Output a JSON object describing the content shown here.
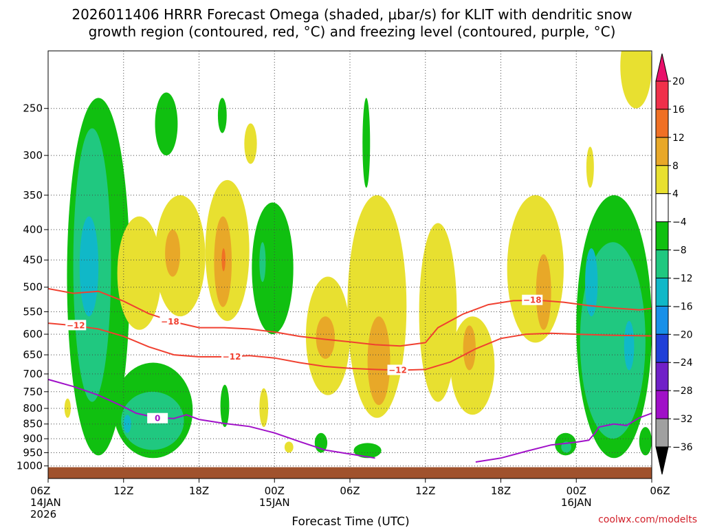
{
  "chart_data": {
    "type": "heatmap",
    "title": {
      "line1": "2026011406 HRRR Forecast Omega (shaded, μbar/s) for KLIT with dendritic snow",
      "line2": "growth region (contoured, red, °C) and freezing level (contoured, purple, °C)"
    },
    "xlabel": "Forecast Time (UTC)",
    "credit": "coolwx.com/modelts",
    "x_range_hours": [
      0,
      48
    ],
    "y_range_hpa": [
      1050,
      200
    ],
    "x_ticks": [
      {
        "hour": 0,
        "label": "06Z",
        "date": "14JAN",
        "year": "2026"
      },
      {
        "hour": 6,
        "label": "12Z"
      },
      {
        "hour": 12,
        "label": "18Z"
      },
      {
        "hour": 18,
        "label": "00Z",
        "date": "15JAN"
      },
      {
        "hour": 24,
        "label": "06Z"
      },
      {
        "hour": 30,
        "label": "12Z"
      },
      {
        "hour": 36,
        "label": "18Z"
      },
      {
        "hour": 42,
        "label": "00Z",
        "date": "16JAN"
      },
      {
        "hour": 48,
        "label": "06Z"
      }
    ],
    "y_ticks": [
      250,
      300,
      350,
      400,
      450,
      500,
      550,
      600,
      650,
      700,
      750,
      800,
      850,
      900,
      950,
      1000
    ],
    "colorbar": {
      "labels": [
        "20",
        "16",
        "12",
        "8",
        "4",
        "−4",
        "−8",
        "−12",
        "−16",
        "−20",
        "−24",
        "−28",
        "−32",
        "−36"
      ],
      "bins": [
        {
          "lo": 16,
          "hi": 20,
          "color": "#f0304a"
        },
        {
          "lo": 12,
          "hi": 16,
          "color": "#f07024"
        },
        {
          "lo": 8,
          "hi": 12,
          "color": "#e8a828"
        },
        {
          "lo": 4,
          "hi": 8,
          "color": "#e8e030"
        },
        {
          "lo": -4,
          "hi": 4,
          "color": "#ffffff"
        },
        {
          "lo": -8,
          "hi": -4,
          "color": "#10c010"
        },
        {
          "lo": -12,
          "hi": -8,
          "color": "#20c880"
        },
        {
          "lo": -16,
          "hi": -12,
          "color": "#10b8c8"
        },
        {
          "lo": -20,
          "hi": -16,
          "color": "#1890e8"
        },
        {
          "lo": -24,
          "hi": -20,
          "color": "#2040d8"
        },
        {
          "lo": -28,
          "hi": -24,
          "color": "#7020c8"
        },
        {
          "lo": -32,
          "hi": -28,
          "color": "#a010c8"
        },
        {
          "lo": -36,
          "hi": -32,
          "color": "#a0a0a0"
        }
      ],
      "top_arrow_color": "#e8106a",
      "bottom_arrow_color": "#000000"
    },
    "omega_regions": [
      {
        "value": -6,
        "x": [
          1.5,
          6.5
        ],
        "y": [
          240,
          960
        ]
      },
      {
        "value": -10,
        "x": [
          2.0,
          5.0
        ],
        "y": [
          270,
          780
        ]
      },
      {
        "value": -14,
        "x": [
          2.5,
          4.0
        ],
        "y": [
          380,
          560
        ]
      },
      {
        "value": -6,
        "x": [
          8.5,
          10.3
        ],
        "y": [
          235,
          300
        ]
      },
      {
        "value": -6,
        "x": [
          13.5,
          14.2
        ],
        "y": [
          240,
          275
        ]
      },
      {
        "value": -6,
        "x": [
          16.2,
          19.5
        ],
        "y": [
          360,
          600
        ]
      },
      {
        "value": -10,
        "x": [
          16.8,
          17.3
        ],
        "y": [
          420,
          490
        ]
      },
      {
        "value": -6,
        "x": [
          5.2,
          11.5
        ],
        "y": [
          670,
          970
        ]
      },
      {
        "value": -10,
        "x": [
          5.8,
          10.8
        ],
        "y": [
          750,
          940
        ]
      },
      {
        "value": -14,
        "x": [
          6.0,
          6.6
        ],
        "y": [
          820,
          880
        ]
      },
      {
        "value": -6,
        "x": [
          13.7,
          14.4
        ],
        "y": [
          730,
          860
        ]
      },
      {
        "value": -6,
        "x": [
          21.2,
          22.2
        ],
        "y": [
          880,
          950
        ]
      },
      {
        "value": -6,
        "x": [
          24.3,
          26.5
        ],
        "y": [
          915,
          970
        ]
      },
      {
        "value": -6,
        "x": [
          25.0,
          25.6
        ],
        "y": [
          240,
          340
        ]
      },
      {
        "value": -6,
        "x": [
          40.3,
          42.0
        ],
        "y": [
          880,
          960
        ]
      },
      {
        "value": -10,
        "x": [
          40.8,
          41.6
        ],
        "y": [
          910,
          950
        ]
      },
      {
        "value": -6,
        "x": [
          42.0,
          48.0
        ],
        "y": [
          350,
          970
        ]
      },
      {
        "value": -10,
        "x": [
          42.3,
          47.5
        ],
        "y": [
          420,
          900
        ]
      },
      {
        "value": -14,
        "x": [
          42.7,
          43.7
        ],
        "y": [
          430,
          560
        ]
      },
      {
        "value": -14,
        "x": [
          45.8,
          46.6
        ],
        "y": [
          570,
          690
        ]
      },
      {
        "value": -6,
        "x": [
          47.0,
          48.0
        ],
        "y": [
          860,
          960
        ]
      },
      {
        "value": 6,
        "x": [
          5.5,
          9.0
        ],
        "y": [
          380,
          590
        ]
      },
      {
        "value": 6,
        "x": [
          8.5,
          12.5
        ],
        "y": [
          350,
          560
        ]
      },
      {
        "value": 10,
        "x": [
          9.3,
          10.5
        ],
        "y": [
          400,
          480
        ]
      },
      {
        "value": 6,
        "x": [
          12.5,
          16.0
        ],
        "y": [
          330,
          570
        ]
      },
      {
        "value": 10,
        "x": [
          13.2,
          14.6
        ],
        "y": [
          380,
          540
        ]
      },
      {
        "value": 14,
        "x": [
          13.8,
          14.1
        ],
        "y": [
          430,
          470
        ]
      },
      {
        "value": 6,
        "x": [
          15.6,
          16.6
        ],
        "y": [
          265,
          310
        ]
      },
      {
        "value": 6,
        "x": [
          20.5,
          24.0
        ],
        "y": [
          480,
          760
        ]
      },
      {
        "value": 10,
        "x": [
          21.3,
          22.8
        ],
        "y": [
          560,
          660
        ]
      },
      {
        "value": 6,
        "x": [
          23.8,
          28.5
        ],
        "y": [
          350,
          830
        ]
      },
      {
        "value": 10,
        "x": [
          25.4,
          27.2
        ],
        "y": [
          560,
          790
        ]
      },
      {
        "value": 6,
        "x": [
          29.5,
          32.5
        ],
        "y": [
          390,
          780
        ]
      },
      {
        "value": 6,
        "x": [
          32.0,
          35.5
        ],
        "y": [
          560,
          820
        ]
      },
      {
        "value": 10,
        "x": [
          33.0,
          34.0
        ],
        "y": [
          580,
          690
        ]
      },
      {
        "value": 6,
        "x": [
          36.5,
          41.0
        ],
        "y": [
          350,
          620
        ]
      },
      {
        "value": 10,
        "x": [
          38.8,
          40.0
        ],
        "y": [
          440,
          590
        ]
      },
      {
        "value": 6,
        "x": [
          45.5,
          48.0
        ],
        "y": [
          180,
          250
        ]
      },
      {
        "value": 6,
        "x": [
          42.8,
          43.4
        ],
        "y": [
          290,
          340
        ]
      },
      {
        "value": 6,
        "x": [
          16.8,
          17.5
        ],
        "y": [
          740,
          860
        ]
      },
      {
        "value": 6,
        "x": [
          1.3,
          1.8
        ],
        "y": [
          770,
          830
        ]
      },
      {
        "value": 6,
        "x": [
          18.8,
          19.5
        ],
        "y": [
          910,
          950
        ]
      }
    ],
    "dgz_contours": [
      {
        "label": "−12",
        "color": "#f04030",
        "points": [
          [
            0,
            575
          ],
          [
            2,
            580
          ],
          [
            4,
            588
          ],
          [
            6,
            605
          ],
          [
            8,
            630
          ],
          [
            10,
            650
          ],
          [
            12,
            655
          ],
          [
            14,
            655
          ],
          [
            16,
            652
          ],
          [
            18,
            658
          ],
          [
            20,
            670
          ],
          [
            22,
            680
          ],
          [
            24,
            685
          ],
          [
            26,
            688
          ],
          [
            28,
            690
          ],
          [
            30,
            688
          ],
          [
            32,
            668
          ],
          [
            34,
            635
          ],
          [
            36,
            610
          ],
          [
            38,
            600
          ],
          [
            40,
            598
          ],
          [
            42,
            600
          ],
          [
            44,
            602
          ],
          [
            46,
            603
          ],
          [
            48,
            604
          ]
        ],
        "label_at": [
          [
            2.2,
            580
          ],
          [
            14.6,
            655
          ],
          [
            27.8,
            690
          ]
        ]
      },
      {
        "label": "−18",
        "color": "#f04030",
        "points": [
          [
            0,
            503
          ],
          [
            2,
            512
          ],
          [
            4,
            508
          ],
          [
            6,
            528
          ],
          [
            8,
            554
          ],
          [
            10,
            572
          ],
          [
            12,
            585
          ],
          [
            14,
            585
          ],
          [
            16,
            588
          ],
          [
            18,
            595
          ],
          [
            20,
            605
          ],
          [
            22,
            612
          ],
          [
            24,
            618
          ],
          [
            26,
            625
          ],
          [
            28,
            628
          ],
          [
            30,
            620
          ],
          [
            31,
            585
          ],
          [
            33,
            555
          ],
          [
            35,
            535
          ],
          [
            37,
            527
          ],
          [
            39,
            526
          ],
          [
            41,
            530
          ],
          [
            43,
            537
          ],
          [
            45,
            542
          ],
          [
            47,
            546
          ],
          [
            48,
            543
          ]
        ],
        "label_at": [
          [
            9.7,
            572
          ],
          [
            38.5,
            526
          ]
        ]
      }
    ],
    "freezing_level_contours": [
      {
        "label": "0",
        "color": "#a010c8",
        "points": [
          [
            0,
            715
          ],
          [
            2,
            735
          ],
          [
            4,
            760
          ],
          [
            6,
            795
          ],
          [
            7,
            815
          ],
          [
            8,
            824
          ],
          [
            9,
            830
          ],
          [
            10,
            832
          ],
          [
            11,
            820
          ],
          [
            12,
            835
          ],
          [
            14,
            848
          ],
          [
            16,
            858
          ],
          [
            18,
            880
          ],
          [
            20,
            910
          ],
          [
            22,
            940
          ],
          [
            24,
            955
          ],
          [
            26,
            970
          ]
        ],
        "label_at": [
          [
            8.7,
            832
          ]
        ]
      },
      {
        "label": "",
        "color": "#a010c8",
        "points": [
          [
            34,
            985
          ],
          [
            36,
            970
          ],
          [
            38,
            945
          ],
          [
            40,
            922
          ],
          [
            42,
            912
          ],
          [
            43,
            905
          ],
          [
            43.5,
            880
          ],
          [
            43.8,
            860
          ],
          [
            45,
            850
          ],
          [
            46,
            855
          ],
          [
            47,
            830
          ],
          [
            48,
            815
          ]
        ],
        "label_at": []
      }
    ],
    "ground_color": "#a0522d",
    "ground_top_hpa": 1005
  }
}
